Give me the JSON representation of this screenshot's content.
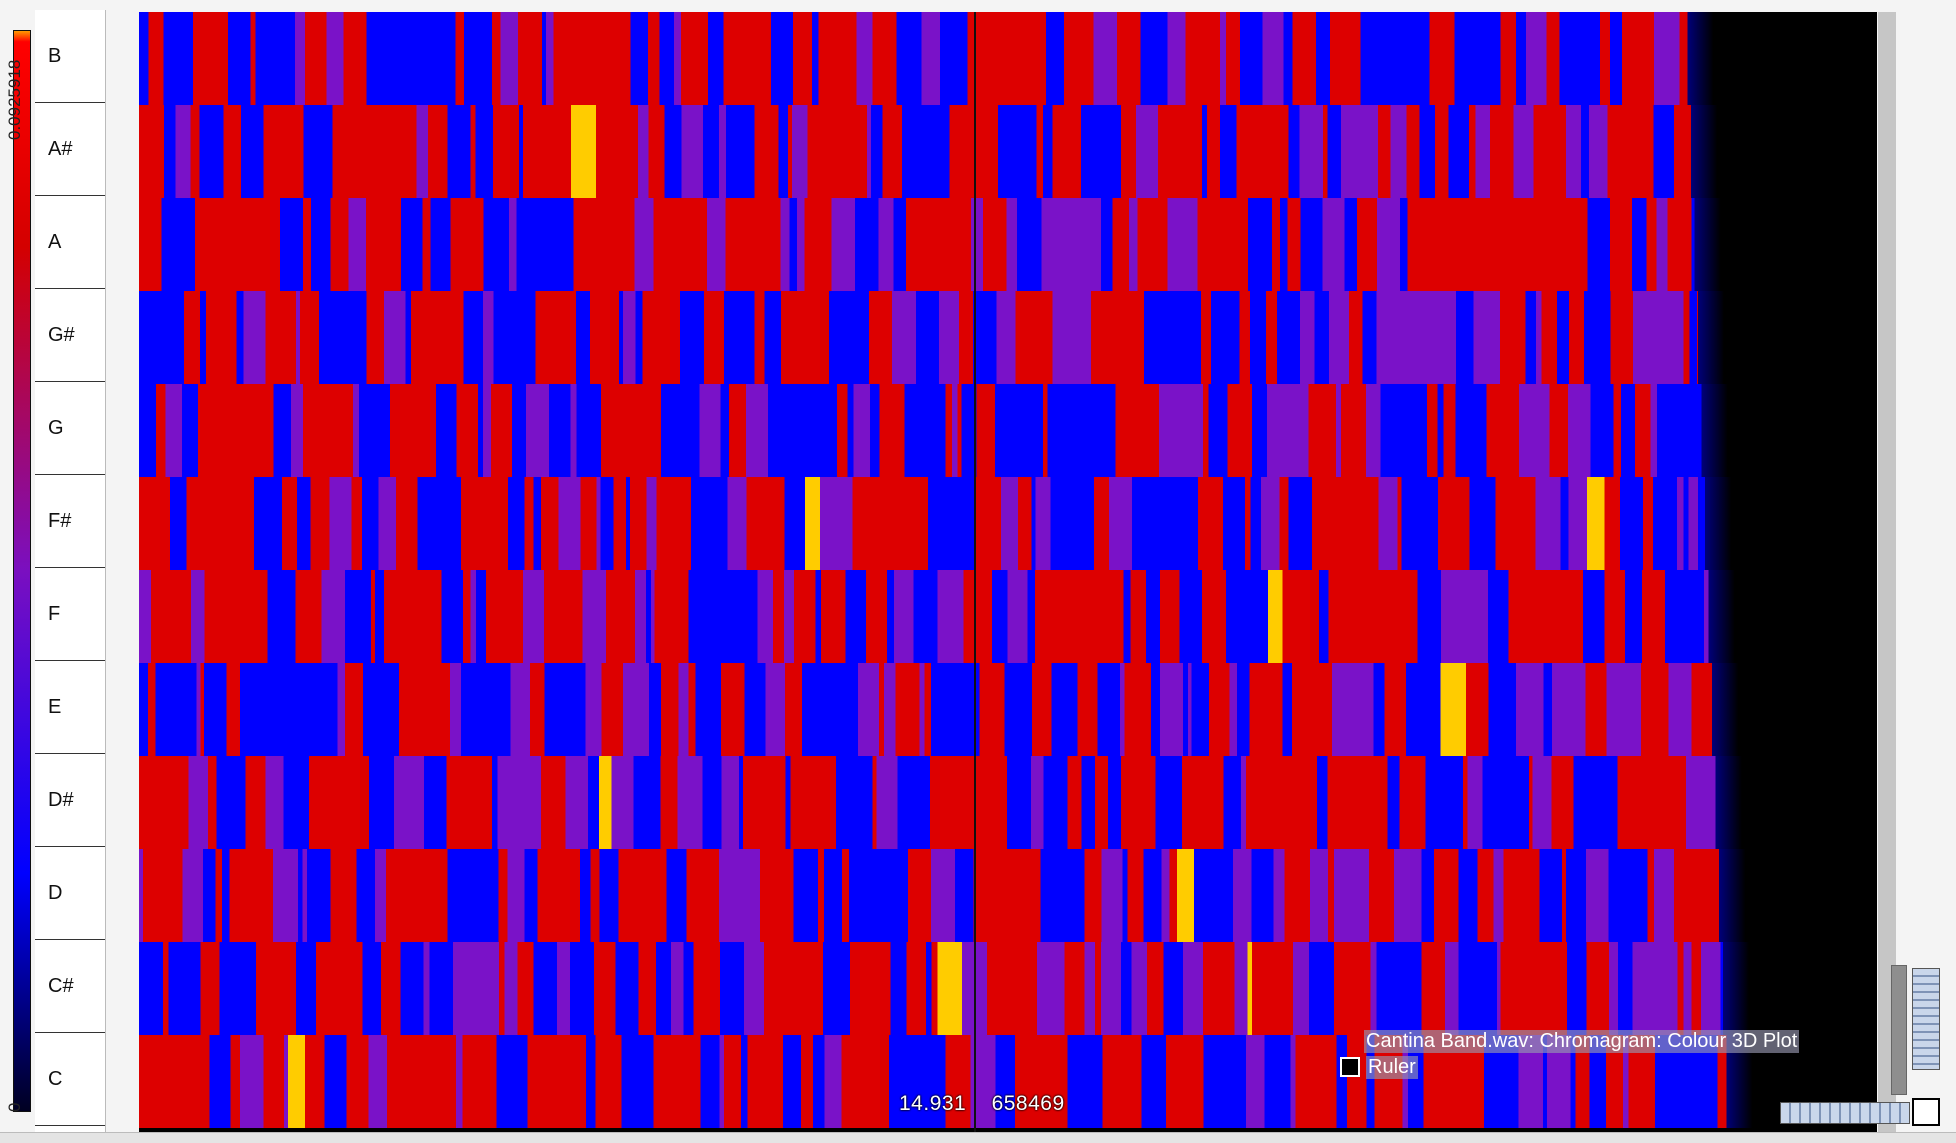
{
  "scale": {
    "max_label": "0.0925918",
    "min_label": "0"
  },
  "pitches": [
    "B",
    "A#",
    "A",
    "G#",
    "G",
    "F#",
    "F",
    "E",
    "D#",
    "D",
    "C#",
    "C"
  ],
  "readout": {
    "time": "14.931",
    "frame": "658469"
  },
  "layers": [
    {
      "label": "Cantina Band.wav: Chromagram: Colour 3D Plot",
      "has_swatch": false
    },
    {
      "label": "Ruler",
      "has_swatch": true
    }
  ],
  "colors": {
    "low": "#0000ff",
    "mid": "#7a12c8",
    "high": "#dd0000",
    "peak": "#ffcc00",
    "background": "#000000"
  }
}
